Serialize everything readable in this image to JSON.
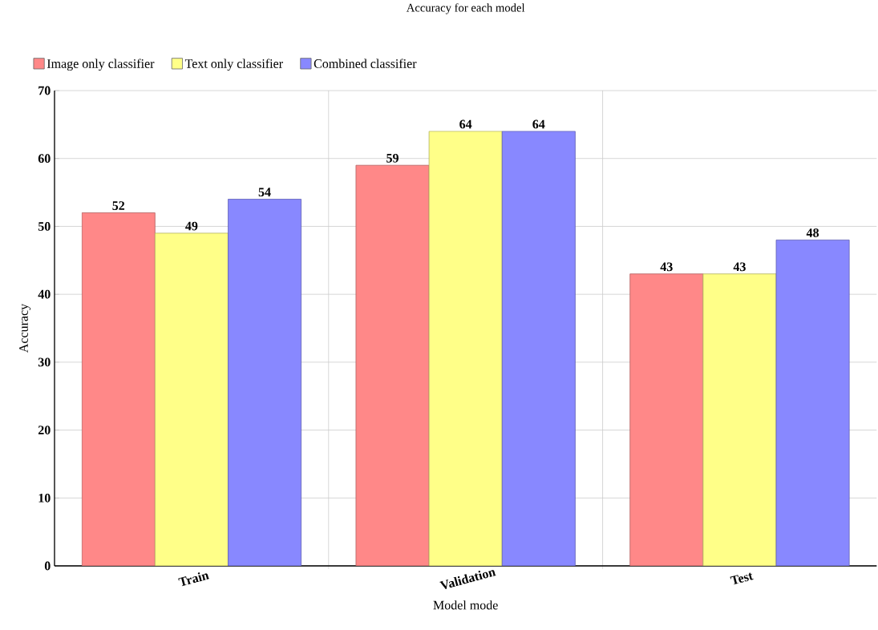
{
  "chart_data": {
    "type": "bar",
    "title": "Accuracy for each model",
    "xlabel": "Model mode",
    "ylabel": "Accuracy",
    "categories": [
      "Train",
      "Validation",
      "Test"
    ],
    "series": [
      {
        "name": "Image only classifier",
        "color": "#ff8888",
        "values": [
          52,
          59,
          43
        ]
      },
      {
        "name": "Text only classifier",
        "color": "#ffff88",
        "values": [
          49,
          64,
          43
        ]
      },
      {
        "name": "Combined classifier",
        "color": "#8888ff",
        "values": [
          54,
          64,
          48
        ]
      }
    ],
    "ylim": [
      0,
      70
    ],
    "yticks": [
      0,
      10,
      20,
      30,
      40,
      50,
      60,
      70
    ],
    "grid": true,
    "legend": "top left",
    "data_labels": true
  }
}
